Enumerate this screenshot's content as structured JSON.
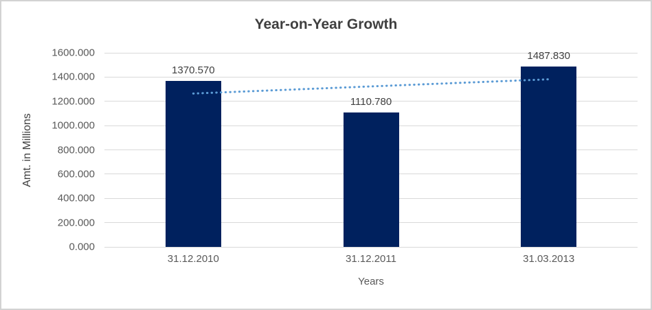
{
  "chart": {
    "colors": {
      "bar": "#00215E",
      "trendline": "#5B9BD5",
      "gridline": "#D9D9D9",
      "tick_text": "#595959",
      "title_text": "#3F3F3F",
      "axis_title_text": "#404040",
      "data_label_text": "#404040",
      "frame_border": "#D2D2D2"
    }
  },
  "chart_data": {
    "type": "bar",
    "title": "Year-on-Year Growth",
    "xlabel": "Years",
    "ylabel": "Amt. in Millions",
    "categories": [
      "31.12.2010",
      "31.12.2011",
      "31.03.2013"
    ],
    "values": [
      1370.57,
      1110.78,
      1487.83
    ],
    "data_labels": [
      "1370.570",
      "1110.780",
      "1487.830"
    ],
    "ylim": [
      0,
      1600
    ],
    "ytick_step": 200,
    "ytick_labels": [
      "0.000",
      "200.000",
      "400.000",
      "600.000",
      "800.000",
      "1000.000",
      "1200.000",
      "1400.000",
      "1600.000"
    ],
    "grid": true,
    "legend_position": "none",
    "trendline": {
      "type": "linear",
      "style": "dotted",
      "endpoint_values": [
        1264.4,
        1381.7
      ]
    }
  }
}
